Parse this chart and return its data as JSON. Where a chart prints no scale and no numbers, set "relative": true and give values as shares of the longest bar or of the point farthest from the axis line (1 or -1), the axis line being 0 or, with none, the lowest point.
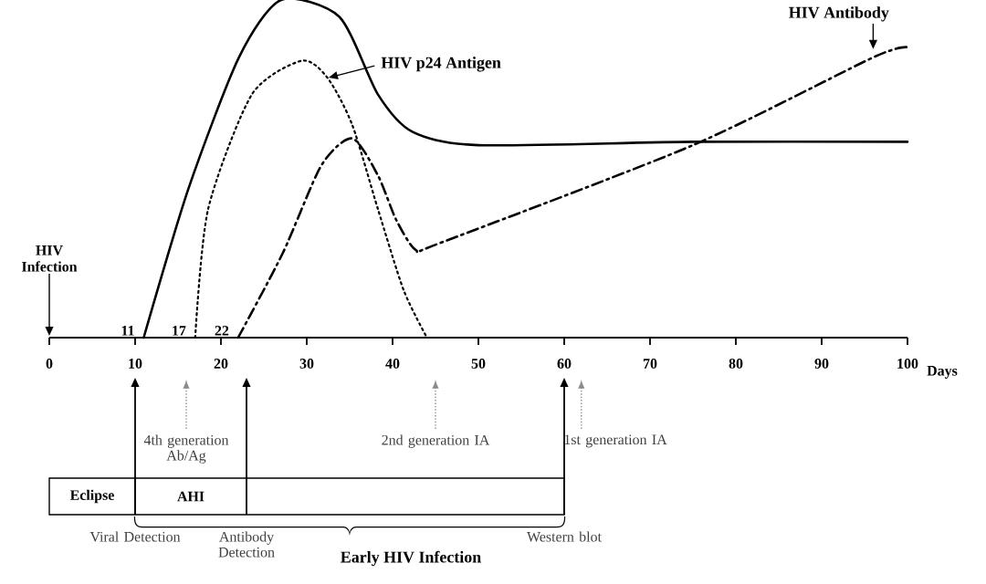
{
  "chart_data": {
    "type": "line",
    "relative": true,
    "xlabel": "Days",
    "xlim": [
      0,
      100
    ],
    "xticks": [
      0,
      10,
      20,
      30,
      40,
      50,
      60,
      70,
      80,
      90,
      100
    ],
    "grid": false,
    "marker": "none",
    "series": [
      {
        "color": "#000000",
        "line_style": "solid",
        "x": [
          11,
          16.2,
          22.1,
          27,
          33.8,
          38.3,
          42.3,
          50,
          75,
          100
        ],
        "values": [
          0,
          0.44,
          0.83,
          1,
          0.95,
          0.72,
          0.61,
          0.57,
          0.58,
          0.58
        ]
      },
      {
        "name": "HIV p24 Antigen",
        "color": "#000000",
        "line_style": "dotted",
        "x": [
          17,
          18.5,
          23.6,
          29.4,
          32.4,
          35.3,
          38.3,
          41.3,
          44
        ],
        "values": [
          0,
          0.38,
          0.72,
          0.82,
          0.77,
          0.63,
          0.38,
          0.14,
          0
        ]
      },
      {
        "name": "HIV Antibody",
        "color": "#000000",
        "line_style": "dashdot",
        "x": [
          22,
          27.2,
          31.7,
          35.3,
          38.3,
          40.4,
          42.7,
          45.5,
          75,
          96,
          100
        ],
        "values": [
          0,
          0.25,
          0.51,
          0.59,
          0.48,
          0.35,
          0.26,
          0.28,
          0.57,
          0.83,
          0.86
        ]
      }
    ],
    "annotations": [
      "HIV Infection",
      {
        "text": "11",
        "x": 11,
        "y": 0
      },
      {
        "text": "17",
        "x": 17,
        "y": 0
      },
      {
        "text": "22",
        "x": 22,
        "y": 0
      },
      "4th generation Ab/Ag",
      "2nd generation IA",
      "1st generation IA",
      "Viral Detection",
      "Antibody Detection",
      "Western blot",
      "Eclipse",
      "AHI",
      "Early HIV Infection"
    ]
  }
}
